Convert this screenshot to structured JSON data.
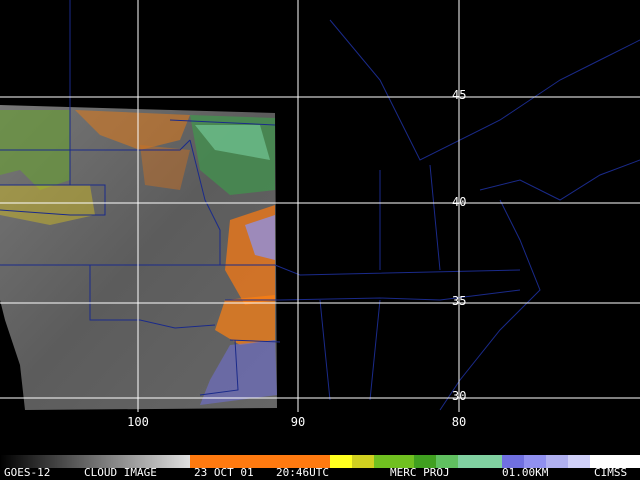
{
  "grid_labels": {
    "latitude": [
      "45",
      "40",
      "35",
      "30"
    ],
    "longitude": [
      "100",
      "90",
      "80"
    ]
  },
  "footer": {
    "satellite": "GOES-12",
    "product": "CLOUD IMAGE",
    "date": "23 OCT 01",
    "time": "20:46UTC",
    "projection": "MERC PROJ",
    "resolution": "01.00KM",
    "source": "CIMSS"
  }
}
